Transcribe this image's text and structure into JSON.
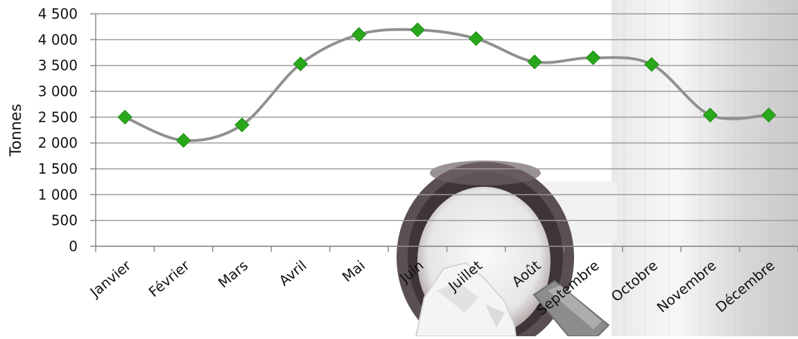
{
  "chart_data": {
    "type": "line",
    "title": "",
    "xlabel": "",
    "ylabel": "Tonnes",
    "categories": [
      "Janvier",
      "Février",
      "Mars",
      "Avril",
      "Mai",
      "Juin",
      "Juillet",
      "Août",
      "Septembre",
      "Octobre",
      "Novembre",
      "Décembre"
    ],
    "series": [
      {
        "values": [
          2500,
          2050,
          2350,
          3530,
          4100,
          4190,
          4020,
          3570,
          3650,
          3520,
          2540,
          2540
        ]
      }
    ],
    "ylim": [
      0,
      4500
    ],
    "yticks": [
      0,
      500,
      1000,
      1500,
      2000,
      2500,
      3000,
      3500,
      4000,
      4500
    ],
    "ytick_labels": [
      "0",
      "500",
      "1 000",
      "1 500",
      "2 000",
      "2 500",
      "3 000",
      "3 500",
      "4 000",
      "4 500"
    ],
    "grid": true,
    "smooth": true,
    "line_color": "#909090",
    "marker": "diamond",
    "marker_color": "#2aa81c"
  }
}
